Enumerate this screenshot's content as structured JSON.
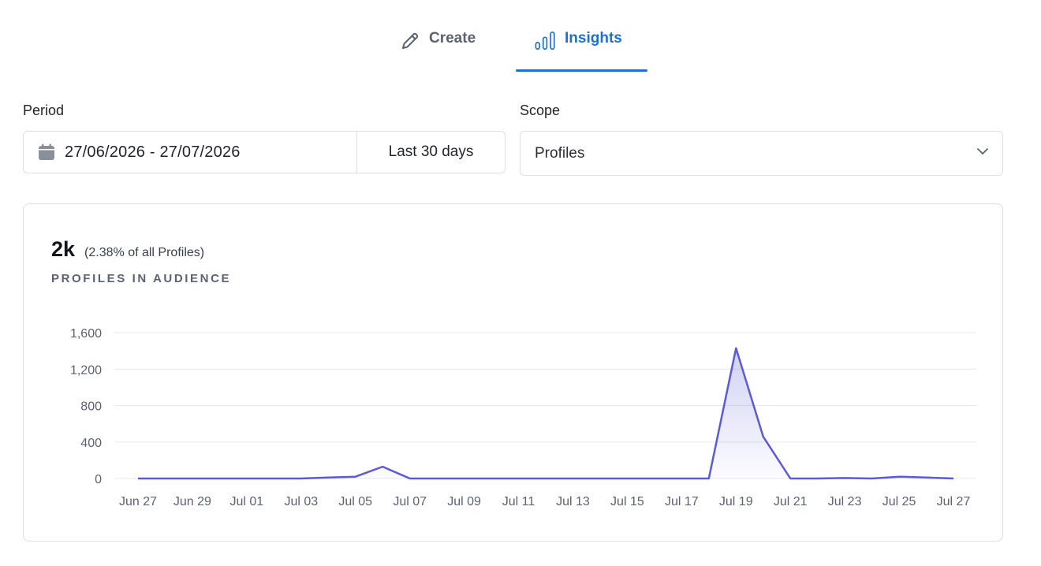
{
  "tabs": [
    {
      "label": "Create",
      "icon": "pencil-icon",
      "active": false
    },
    {
      "label": "Insights",
      "icon": "bar-chart-icon",
      "active": true
    }
  ],
  "period": {
    "label": "Period",
    "range": "27/06/2026 - 27/07/2026",
    "preset": "Last 30 days"
  },
  "scope": {
    "label": "Scope",
    "value": "Profiles"
  },
  "metric": {
    "value": "2k",
    "percent_text": "(2.38% of all Profiles)",
    "caption": "PROFILES IN AUDIENCE"
  },
  "colors": {
    "accent": "#1f6fd0",
    "line": "#5b5bd6",
    "grid": "#e6e8ec"
  },
  "chart_data": {
    "type": "area",
    "title": "",
    "xlabel": "",
    "ylabel": "",
    "ylim": [
      0,
      1600
    ],
    "yticks": [
      0,
      400,
      800,
      1200,
      1600
    ],
    "ytick_labels": [
      "0",
      "400",
      "800",
      "1,200",
      "1,600"
    ],
    "x_tick_labels": [
      "Jun 27",
      "Jun 29",
      "Jul 01",
      "Jul 03",
      "Jul 05",
      "Jul 07",
      "Jul 09",
      "Jul 11",
      "Jul 13",
      "Jul 15",
      "Jul 17",
      "Jul 19",
      "Jul 21",
      "Jul 23",
      "Jul 25",
      "Jul 27"
    ],
    "grid": true,
    "legend": "none",
    "x": [
      "Jun 27",
      "Jun 28",
      "Jun 29",
      "Jun 30",
      "Jul 01",
      "Jul 02",
      "Jul 03",
      "Jul 04",
      "Jul 05",
      "Jul 06",
      "Jul 07",
      "Jul 08",
      "Jul 09",
      "Jul 10",
      "Jul 11",
      "Jul 12",
      "Jul 13",
      "Jul 14",
      "Jul 15",
      "Jul 16",
      "Jul 17",
      "Jul 18",
      "Jul 19",
      "Jul 20",
      "Jul 21",
      "Jul 22",
      "Jul 23",
      "Jul 24",
      "Jul 25",
      "Jul 26",
      "Jul 27"
    ],
    "series": [
      {
        "values": [
          0,
          0,
          0,
          0,
          0,
          0,
          0,
          10,
          20,
          130,
          0,
          0,
          0,
          0,
          0,
          0,
          0,
          0,
          0,
          0,
          0,
          0,
          1430,
          460,
          0,
          0,
          5,
          0,
          20,
          10,
          0
        ]
      }
    ]
  }
}
